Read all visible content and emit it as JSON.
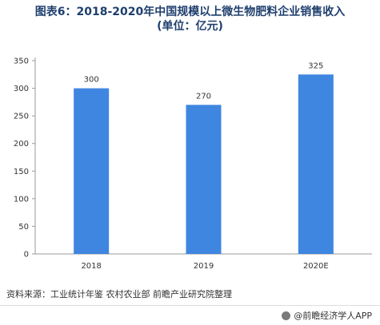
{
  "title": {
    "line1": "图表6：2018-2020年中国规模以上微生物肥料企业销售收入",
    "line2": "(单位：亿元)"
  },
  "source_text": "资料来源：工业统计年鉴 农村农业部 前瞻产业研究院整理",
  "footer_text": "@前瞻经济学人APP",
  "chart_data": {
    "type": "bar",
    "categories": [
      "2018",
      "2019",
      "2020E"
    ],
    "values": [
      300,
      270,
      325
    ],
    "value_labels": [
      "300",
      "270",
      "325"
    ],
    "ylim": [
      0,
      350
    ],
    "yticks": [
      0,
      50,
      100,
      150,
      200,
      250,
      300,
      350
    ],
    "bar_color": "#3f86e0",
    "grid": false
  }
}
